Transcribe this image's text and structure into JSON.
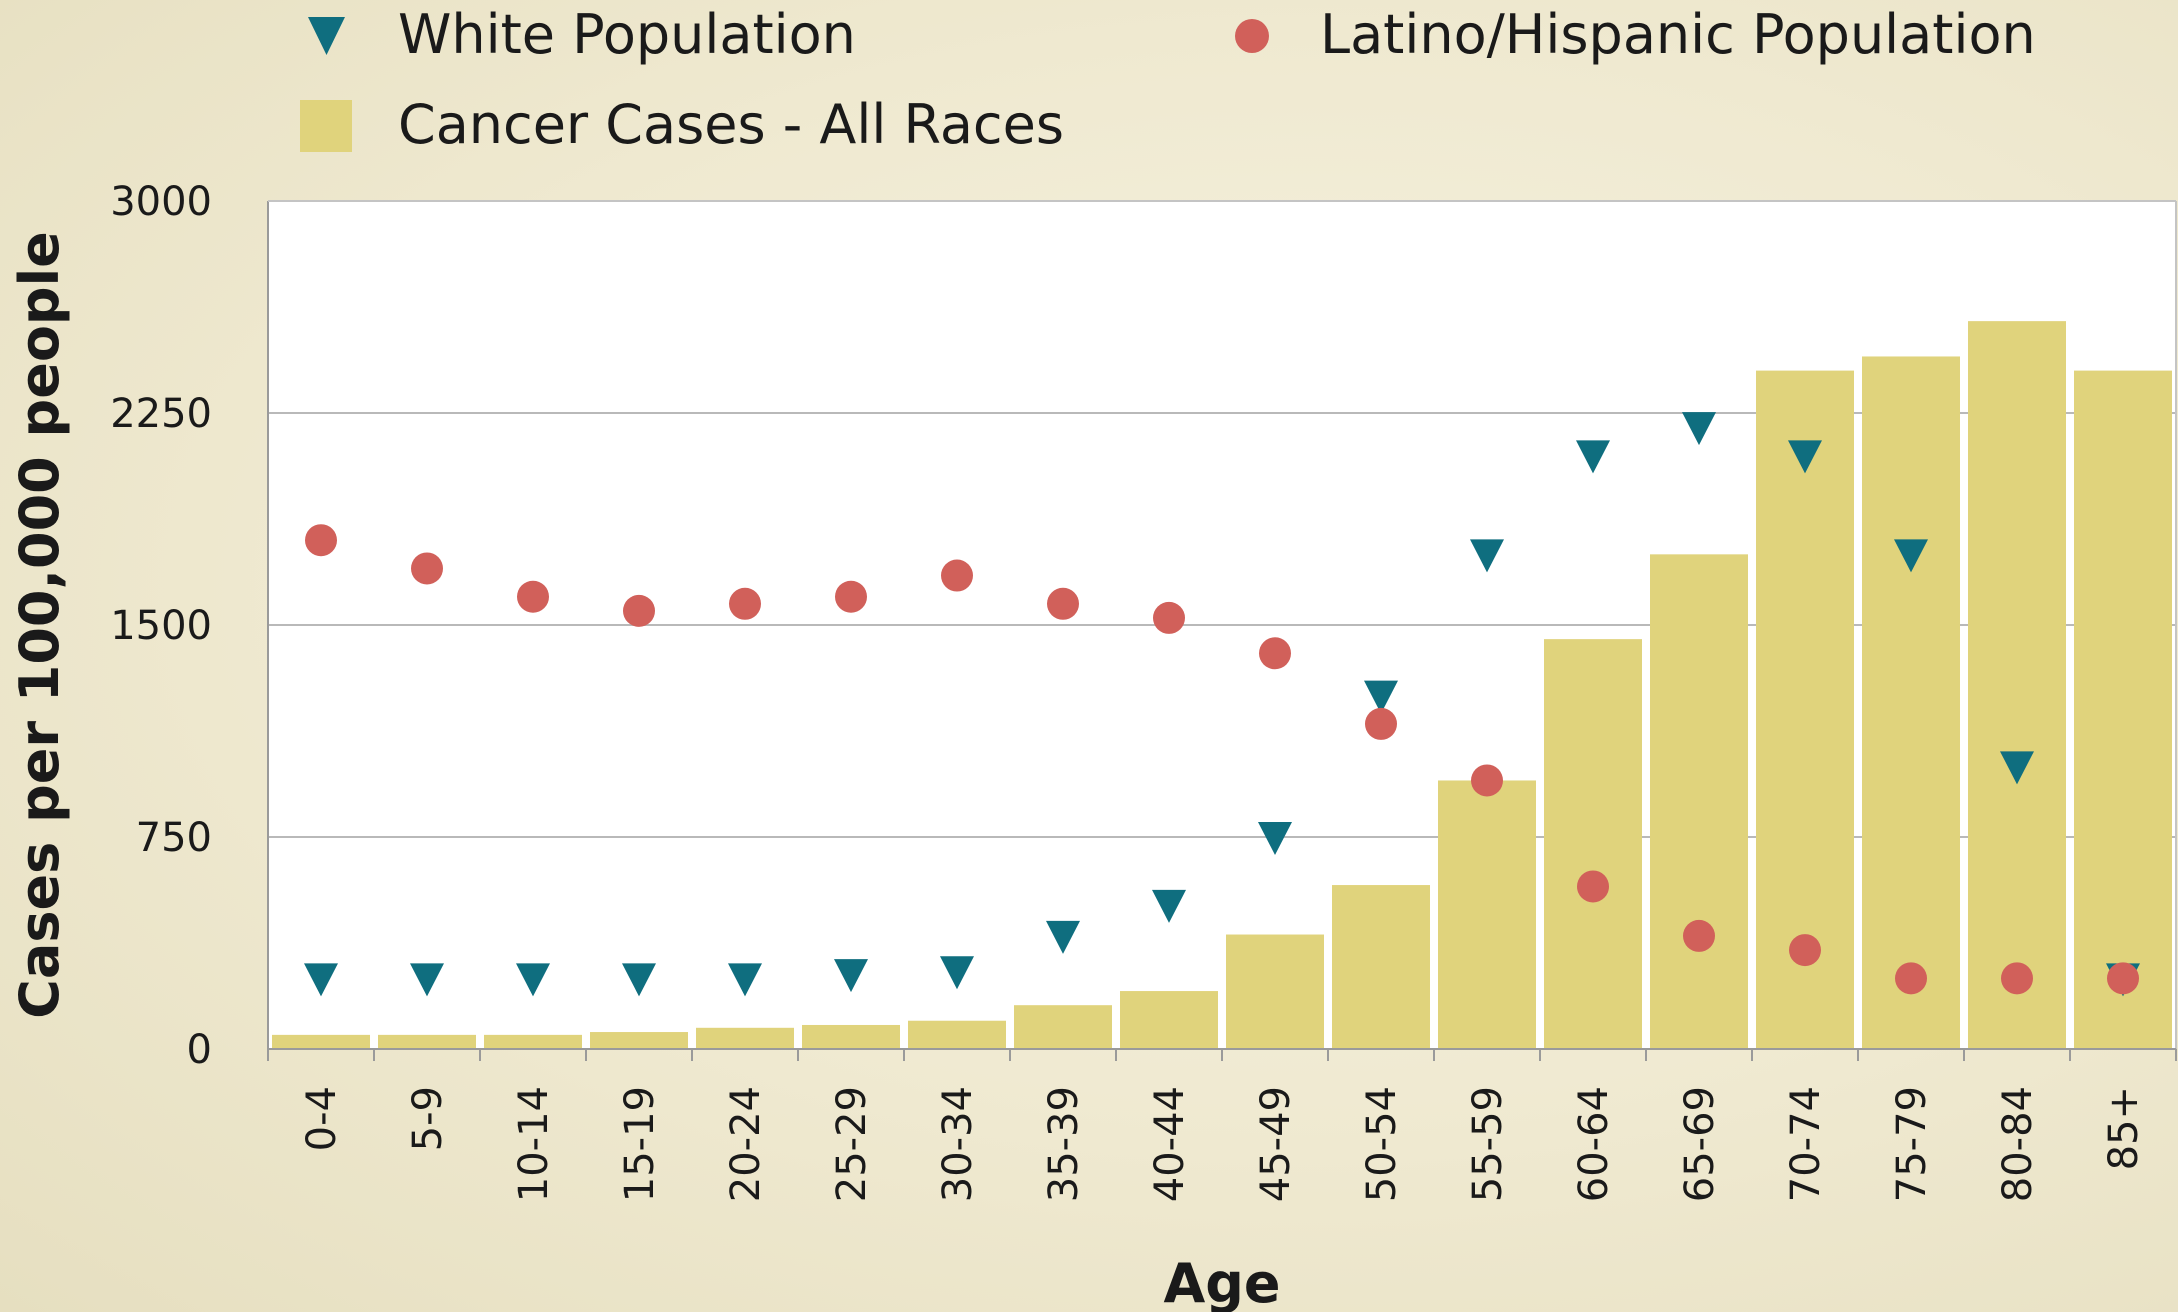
{
  "chart_data": {
    "type": "bar",
    "title": "",
    "xlabel": "Age",
    "ylabel": "Cases per 100,000 people",
    "ylim": [
      0,
      3000
    ],
    "yticks": [
      0,
      750,
      1500,
      2250,
      3000
    ],
    "grid": true,
    "legend_position": "top",
    "categories": [
      "0-4",
      "5-9",
      "10-14",
      "15-19",
      "20-24",
      "25-29",
      "30-34",
      "35-39",
      "40-44",
      "45-49",
      "50-54",
      "55-59",
      "60-64",
      "65-69",
      "70-74",
      "75-79",
      "80-84",
      "85+"
    ],
    "series": [
      {
        "name": "White Population",
        "kind": "scatter",
        "marker": "triangle-down",
        "color": "#0f6e7f",
        "values": [
          250,
          250,
          250,
          250,
          250,
          265,
          275,
          400,
          510,
          750,
          1250,
          1750,
          2100,
          2200,
          2100,
          1750,
          1000,
          250
        ]
      },
      {
        "name": "Latino/Hispanic Population",
        "kind": "scatter",
        "marker": "circle",
        "color": "#d1605a",
        "values": [
          1800,
          1700,
          1600,
          1550,
          1575,
          1600,
          1675,
          1575,
          1525,
          1400,
          1150,
          950,
          575,
          400,
          350,
          250,
          250,
          250
        ]
      },
      {
        "name": "Cancer Cases - All Races",
        "kind": "bar",
        "color": "#e0d37c",
        "values": [
          50,
          50,
          50,
          60,
          75,
          85,
          100,
          155,
          205,
          405,
          580,
          950,
          1450,
          1750,
          2400,
          2450,
          2575,
          2400
        ]
      }
    ]
  }
}
